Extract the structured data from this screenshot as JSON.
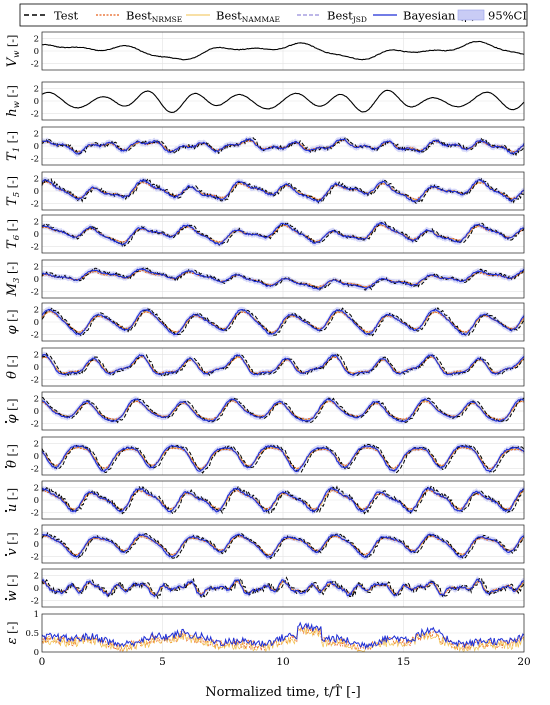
{
  "chart_data": {
    "type": "line",
    "xlabel": "Normalized time, t/T̂ [-]",
    "xlim": [
      0,
      20
    ],
    "xticks": [
      0,
      5,
      10,
      15,
      20
    ],
    "grid": true,
    "legend_placement": "top",
    "legend": [
      {
        "key": "test",
        "label": "Test",
        "sub": ""
      },
      {
        "key": "nrmse",
        "label": "Best",
        "sub": "NRMSE"
      },
      {
        "key": "nammae",
        "label": "Best",
        "sub": "NAMMAE"
      },
      {
        "key": "jsd",
        "label": "Best",
        "sub": "JSD"
      },
      {
        "key": "bayes",
        "label": "Bayesian (μ)",
        "sub": ""
      },
      {
        "key": "ci",
        "label": "95%CI",
        "sub": ""
      }
    ],
    "colors": {
      "test": "#000000",
      "nrmse": "#e8601c",
      "nammae": "#f2c14e",
      "jsd": "#7b6fd0",
      "bayes": "#1f2fd6",
      "ci": "#c9ccf5"
    },
    "panels": [
      {
        "ylabel": "V",
        "sub": "w",
        "deco": "",
        "unit": "[-]",
        "yticks": [
          "2",
          "0",
          "-2"
        ],
        "ylim": [
          -3,
          3
        ],
        "series": [
          "test"
        ],
        "modes": [
          [
            0.25,
            0.8,
            0.3
          ],
          [
            0.55,
            0.55,
            1.4
          ],
          [
            1.1,
            0.25,
            2.1
          ]
        ],
        "noise": 0.05
      },
      {
        "ylabel": "h",
        "sub": "w",
        "deco": "",
        "unit": "[-]",
        "yticks": [
          "2",
          "0",
          "-2"
        ],
        "ylim": [
          -3,
          3
        ],
        "series": [
          "test"
        ],
        "modes": [
          [
            1.0,
            1.1,
            0.4
          ],
          [
            0.55,
            0.45,
            1.3
          ],
          [
            1.25,
            0.3,
            2.5
          ]
        ],
        "noise": 0.03
      },
      {
        "ylabel": "T",
        "sub": "1",
        "deco": "",
        "unit": "[-]",
        "yticks": [
          "2",
          "0",
          "-2"
        ],
        "ylim": [
          -3,
          3
        ],
        "series": [
          "all"
        ],
        "modes": [
          [
            1.0,
            0.55,
            0.2
          ],
          [
            2.1,
            0.35,
            1.1
          ],
          [
            0.45,
            0.25,
            2.2
          ]
        ],
        "noise": 0.25
      },
      {
        "ylabel": "T",
        "sub": "5",
        "deco": "",
        "unit": "[-]",
        "yticks": [
          "2",
          "0",
          "-2"
        ],
        "ylim": [
          -3,
          3
        ],
        "series": [
          "all"
        ],
        "modes": [
          [
            1.0,
            0.9,
            0.6
          ],
          [
            0.45,
            0.6,
            1.5
          ],
          [
            2.0,
            0.35,
            0.9
          ]
        ],
        "noise": 0.25
      },
      {
        "ylabel": "T",
        "sub": "6",
        "deco": "",
        "unit": "[-]",
        "yticks": [
          "2",
          "0",
          "-2"
        ],
        "ylim": [
          -3,
          3
        ],
        "series": [
          "all"
        ],
        "modes": [
          [
            1.0,
            0.9,
            1.0
          ],
          [
            0.45,
            0.6,
            0.3
          ],
          [
            2.0,
            0.3,
            1.8
          ]
        ],
        "noise": 0.22
      },
      {
        "ylabel": "M",
        "sub": "3",
        "deco": "",
        "unit": "[-]",
        "yticks": [
          "2",
          "0",
          "-2"
        ],
        "ylim": [
          -3,
          3
        ],
        "series": [
          "all"
        ],
        "modes": [
          [
            1.0,
            0.55,
            0.7
          ],
          [
            0.12,
            0.9,
            0.1
          ],
          [
            2.0,
            0.25,
            1.3
          ]
        ],
        "noise": 0.2
      },
      {
        "ylabel": "φ",
        "sub": "",
        "deco": "",
        "unit": "[-]",
        "yticks": [
          "2",
          "0",
          "-2"
        ],
        "ylim": [
          -3,
          3
        ],
        "series": [
          "all"
        ],
        "modes": [
          [
            1.0,
            1.5,
            0.2
          ],
          [
            0.5,
            0.45,
            1.6
          ],
          [
            2.0,
            0.25,
            0.5
          ]
        ],
        "noise": 0.18
      },
      {
        "ylabel": "θ",
        "sub": "",
        "deco": "",
        "unit": "[-]",
        "yticks": [
          "2",
          "0",
          "-2"
        ],
        "ylim": [
          -3,
          3
        ],
        "series": [
          "all"
        ],
        "modes": [
          [
            1.0,
            1.2,
            1.3
          ],
          [
            2.0,
            0.45,
            0.4
          ],
          [
            0.5,
            0.35,
            2.0
          ]
        ],
        "noise": 0.18
      },
      {
        "ylabel": "φ",
        "sub": "",
        "deco": "dot",
        "unit": "[-]",
        "yticks": [
          "2",
          "0",
          "-2"
        ],
        "ylim": [
          -3,
          3
        ],
        "series": [
          "all"
        ],
        "modes": [
          [
            1.0,
            1.45,
            1.8
          ],
          [
            0.5,
            0.4,
            0.7
          ],
          [
            2.0,
            0.25,
            2.6
          ]
        ],
        "noise": 0.15
      },
      {
        "ylabel": "θ",
        "sub": "",
        "deco": "dot",
        "unit": "[-]",
        "yticks": [
          "2",
          "0",
          "-2"
        ],
        "ylim": [
          -3,
          3
        ],
        "series": [
          "all"
        ],
        "modes": [
          [
            1.0,
            1.75,
            2.9
          ],
          [
            2.0,
            0.35,
            1.1
          ],
          [
            0.5,
            0.3,
            0.2
          ]
        ],
        "noise": 0.18
      },
      {
        "ylabel": "u",
        "sub": "",
        "deco": "dot",
        "unit": "[-]",
        "yticks": [
          "2",
          "0",
          "-2"
        ],
        "ylim": [
          -3,
          3
        ],
        "series": [
          "all"
        ],
        "modes": [
          [
            1.0,
            1.45,
            0.9
          ],
          [
            2.0,
            0.45,
            2.2
          ],
          [
            0.5,
            0.3,
            1.1
          ]
        ],
        "noise": 0.28
      },
      {
        "ylabel": "v",
        "sub": "",
        "deco": "dot",
        "unit": "[-]",
        "yticks": [
          "2",
          "0",
          "-2"
        ],
        "ylim": [
          -3,
          3
        ],
        "series": [
          "all"
        ],
        "modes": [
          [
            1.0,
            1.35,
            0.5
          ],
          [
            0.5,
            0.4,
            2.4
          ],
          [
            2.0,
            0.35,
            1.7
          ]
        ],
        "noise": 0.2
      },
      {
        "ylabel": "w",
        "sub": "",
        "deco": "dot",
        "unit": "[-]",
        "yticks": [
          "2",
          "0",
          "-2"
        ],
        "ylim": [
          -3,
          3
        ],
        "series": [
          "all"
        ],
        "modes": [
          [
            1.0,
            0.45,
            2.0
          ],
          [
            2.0,
            0.55,
            0.8
          ],
          [
            3.2,
            0.35,
            1.5
          ]
        ],
        "noise": 0.35
      },
      {
        "ylabel": "ε",
        "sub": "",
        "deco": "",
        "unit": "[-]",
        "yticks": [
          "1",
          "0.5",
          "0"
        ],
        "ylim": [
          0,
          1
        ],
        "series": [
          "eps"
        ],
        "modes": [],
        "noise": 0.06
      }
    ]
  }
}
